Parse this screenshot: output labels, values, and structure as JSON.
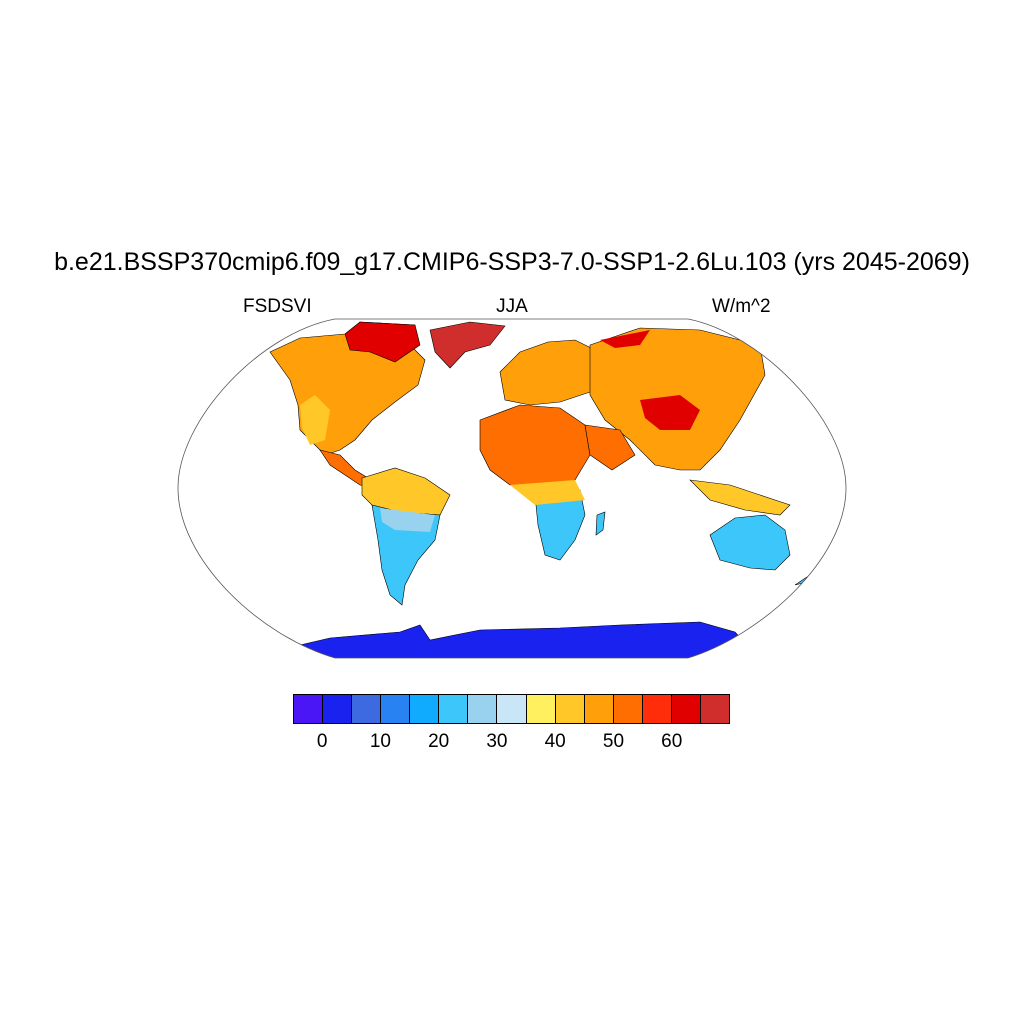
{
  "title": "b.e21.BSSP370cmip6.f09_g17.CMIP6-SSP3-7.0-SSP1-2.6Lu.103 (yrs 2045-2069)",
  "variable": "FSDSVI",
  "season": "JJA",
  "units": "W/m^2",
  "projection": "Robinson",
  "colorbar": {
    "colors": [
      "#4b16f5",
      "#1a22f0",
      "#3d6ae0",
      "#2882f2",
      "#10aaff",
      "#3cc6fa",
      "#98d2ee",
      "#c8e6f6",
      "#fff060",
      "#ffc828",
      "#ffa00a",
      "#ff6e00",
      "#ff2d0a",
      "#e10000",
      "#d02d2d"
    ],
    "tick_labels": [
      "0",
      "10",
      "20",
      "30",
      "40",
      "50",
      "60"
    ]
  },
  "colors": {
    "ocean": "#ffffff",
    "coast": "#000000"
  }
}
